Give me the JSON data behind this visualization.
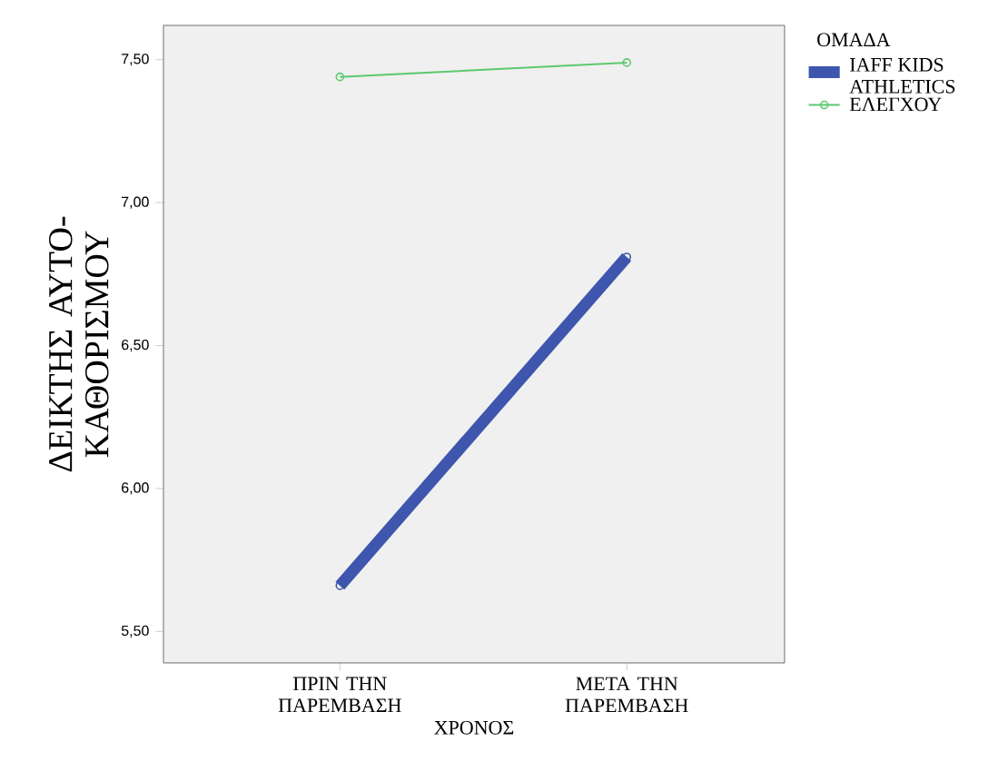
{
  "chart_data": {
    "type": "line",
    "xlabel": "ΧΡΟΝΟΣ",
    "ylabel": "ΔΕΙΚΤΗΣ ΑΥΤΟ-ΚΑΘΟΡΙΣΜΟΥ",
    "legend_title": "ΟΜΑΔΑ",
    "categories": [
      "ΠΡΙΝ ΤΗΝ ΠΑΡΕΜΒΑΣΗ",
      "ΜΕΤΑ ΤΗΝ ΠΑΡΕΜΒΑΣΗ"
    ],
    "series": [
      {
        "name": "IAFF KIDS ATHLETICS",
        "color": "#3e56ad",
        "values": [
          5.66,
          6.81
        ]
      },
      {
        "name": "ΕΛΕΓΧΟΥ",
        "color": "#5cc96e",
        "values": [
          7.44,
          7.49
        ]
      }
    ],
    "ylim": [
      5.39,
      7.62
    ],
    "yticks": [
      {
        "value": 5.5,
        "label": "5,50"
      },
      {
        "value": 6.0,
        "label": "6,00"
      },
      {
        "value": 6.5,
        "label": "6,50"
      },
      {
        "value": 7.0,
        "label": "7,00"
      },
      {
        "value": 7.5,
        "label": "7,50"
      }
    ],
    "marker": "circle",
    "legend": "right",
    "grid": false
  }
}
